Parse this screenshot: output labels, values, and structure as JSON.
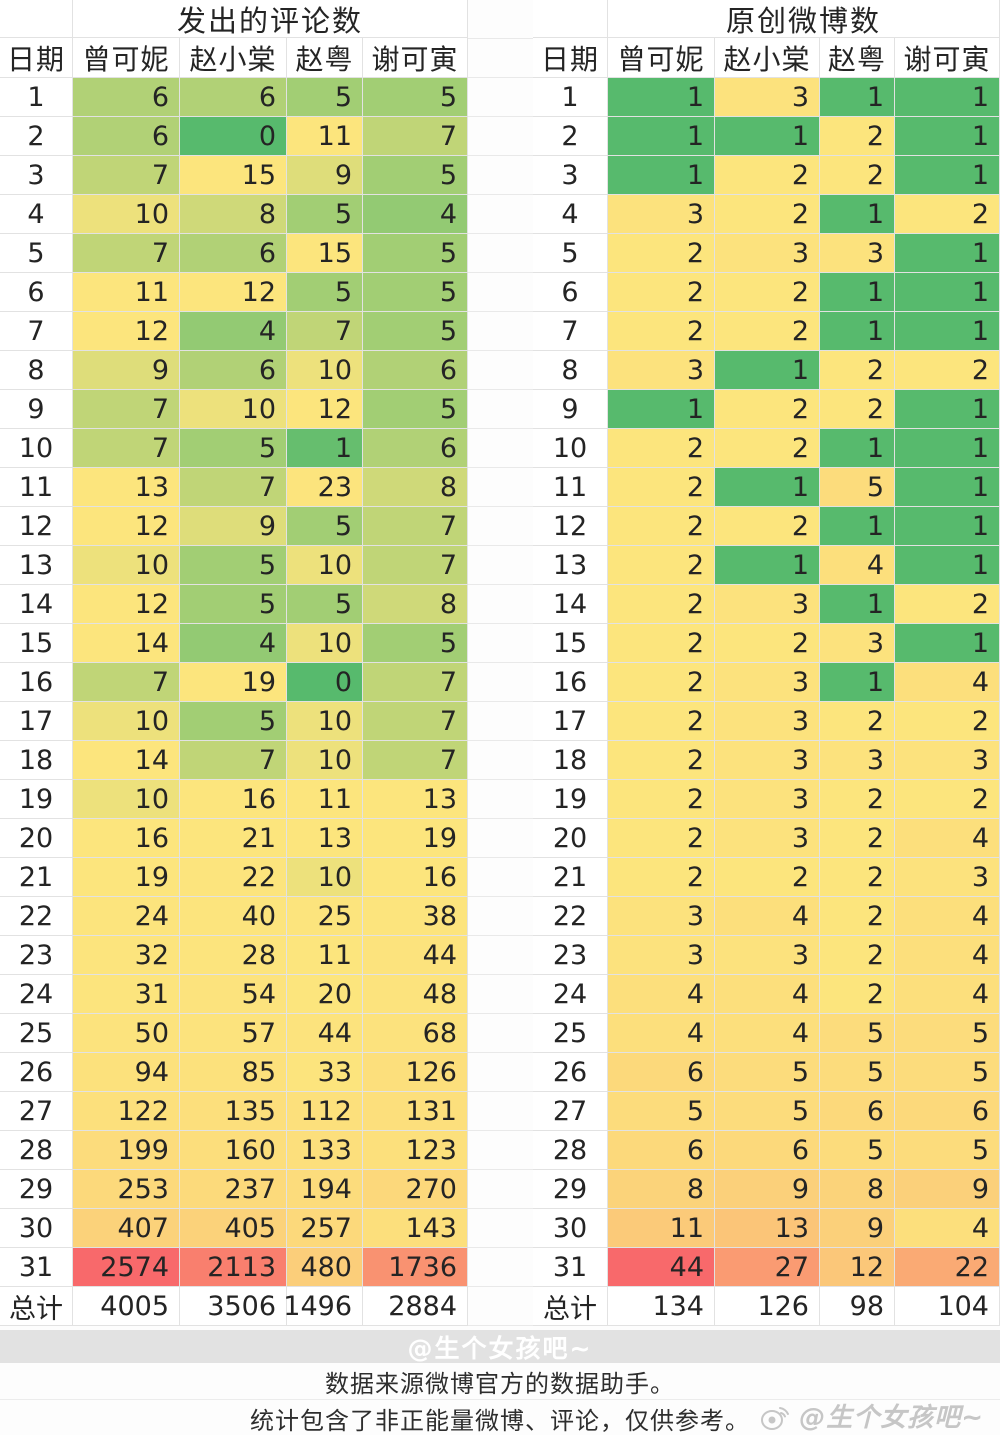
{
  "chart_data": [
    {
      "type": "heatmap",
      "title": "发出的评论数",
      "columns": [
        "日期",
        "曾可妮",
        "赵小棠",
        "赵粤",
        "谢可寅"
      ],
      "rows": [
        [
          1,
          6,
          6,
          5,
          5
        ],
        [
          2,
          6,
          0,
          11,
          7
        ],
        [
          3,
          7,
          15,
          9,
          5
        ],
        [
          4,
          10,
          8,
          5,
          4
        ],
        [
          5,
          7,
          6,
          15,
          5
        ],
        [
          6,
          11,
          12,
          5,
          5
        ],
        [
          7,
          12,
          4,
          7,
          5
        ],
        [
          8,
          9,
          6,
          10,
          6
        ],
        [
          9,
          7,
          10,
          12,
          5
        ],
        [
          10,
          7,
          5,
          1,
          6
        ],
        [
          11,
          13,
          7,
          23,
          8
        ],
        [
          12,
          12,
          9,
          5,
          7
        ],
        [
          13,
          10,
          5,
          10,
          7
        ],
        [
          14,
          12,
          5,
          5,
          8
        ],
        [
          15,
          14,
          4,
          10,
          5
        ],
        [
          16,
          7,
          19,
          0,
          7
        ],
        [
          17,
          10,
          5,
          10,
          7
        ],
        [
          18,
          14,
          7,
          10,
          7
        ],
        [
          19,
          10,
          16,
          11,
          13
        ],
        [
          20,
          16,
          21,
          13,
          19
        ],
        [
          21,
          19,
          22,
          10,
          16
        ],
        [
          22,
          24,
          40,
          25,
          38
        ],
        [
          23,
          32,
          28,
          11,
          44
        ],
        [
          24,
          31,
          54,
          20,
          48
        ],
        [
          25,
          50,
          57,
          44,
          68
        ],
        [
          26,
          94,
          85,
          33,
          126
        ],
        [
          27,
          122,
          135,
          112,
          131
        ],
        [
          28,
          199,
          160,
          133,
          123
        ],
        [
          29,
          253,
          237,
          194,
          270
        ],
        [
          30,
          407,
          405,
          257,
          143
        ],
        [
          31,
          2574,
          2113,
          480,
          1736
        ]
      ],
      "total_label": "总计",
      "totals": [
        4005,
        3506,
        1496,
        2884
      ]
    },
    {
      "type": "heatmap",
      "title": "原创微博数",
      "columns": [
        "日期",
        "曾可妮",
        "赵小棠",
        "赵粤",
        "谢可寅"
      ],
      "rows": [
        [
          1,
          1,
          3,
          1,
          1
        ],
        [
          2,
          1,
          1,
          2,
          1
        ],
        [
          3,
          1,
          2,
          2,
          1
        ],
        [
          4,
          3,
          2,
          1,
          2
        ],
        [
          5,
          2,
          3,
          3,
          1
        ],
        [
          6,
          2,
          2,
          1,
          1
        ],
        [
          7,
          2,
          2,
          1,
          1
        ],
        [
          8,
          3,
          1,
          2,
          2
        ],
        [
          9,
          1,
          2,
          2,
          1
        ],
        [
          10,
          2,
          2,
          1,
          1
        ],
        [
          11,
          2,
          1,
          5,
          1
        ],
        [
          12,
          2,
          2,
          1,
          1
        ],
        [
          13,
          2,
          1,
          4,
          1
        ],
        [
          14,
          2,
          3,
          1,
          2
        ],
        [
          15,
          2,
          2,
          3,
          1
        ],
        [
          16,
          2,
          3,
          1,
          4
        ],
        [
          17,
          2,
          3,
          2,
          2
        ],
        [
          18,
          2,
          3,
          3,
          3
        ],
        [
          19,
          2,
          3,
          2,
          2
        ],
        [
          20,
          2,
          3,
          2,
          4
        ],
        [
          21,
          2,
          2,
          2,
          3
        ],
        [
          22,
          3,
          4,
          2,
          4
        ],
        [
          23,
          3,
          3,
          2,
          4
        ],
        [
          24,
          4,
          4,
          2,
          4
        ],
        [
          25,
          4,
          4,
          5,
          5
        ],
        [
          26,
          6,
          5,
          5,
          5
        ],
        [
          27,
          5,
          5,
          6,
          6
        ],
        [
          28,
          6,
          6,
          5,
          5
        ],
        [
          29,
          8,
          9,
          8,
          9
        ],
        [
          30,
          11,
          13,
          9,
          4
        ],
        [
          31,
          44,
          27,
          12,
          22
        ]
      ],
      "total_label": "总计",
      "totals": [
        134,
        126,
        98,
        104
      ]
    }
  ],
  "heatmap_colors": {
    "min_color": "#57BA6D",
    "mid_color": "#FCE57D",
    "max_color": "#F8696B"
  },
  "watermark_bar": "@生个女孩吧~",
  "footer": {
    "line1": "数据来源微博官方的数据助手。",
    "line2": "统计包含了非正能量微博、评论，仅供参考。"
  },
  "corner_watermark": "@生个女孩吧~"
}
